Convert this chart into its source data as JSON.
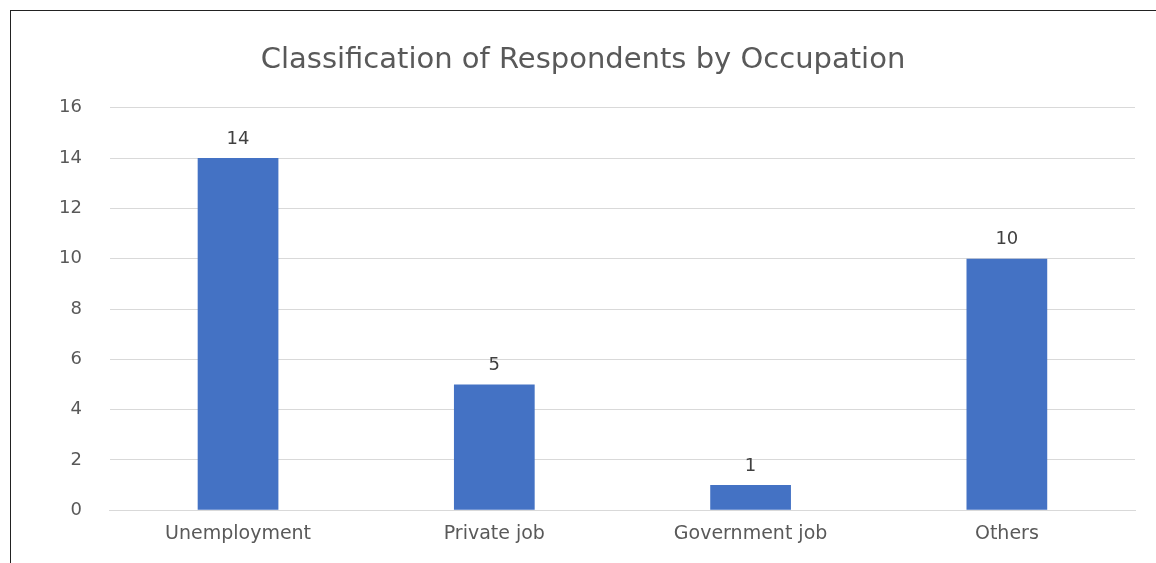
{
  "chart_data": {
    "type": "bar",
    "title": "Classification of Respondents by Occupation",
    "categories": [
      "Unemployment",
      "Private job",
      "Government job",
      "Others"
    ],
    "values": [
      14,
      5,
      1,
      10
    ],
    "color": "#4472c4",
    "ylim": [
      0,
      16
    ],
    "yticks": [
      0,
      2,
      4,
      6,
      8,
      10,
      12,
      14,
      16
    ],
    "grid": "y",
    "data_labels": true
  }
}
